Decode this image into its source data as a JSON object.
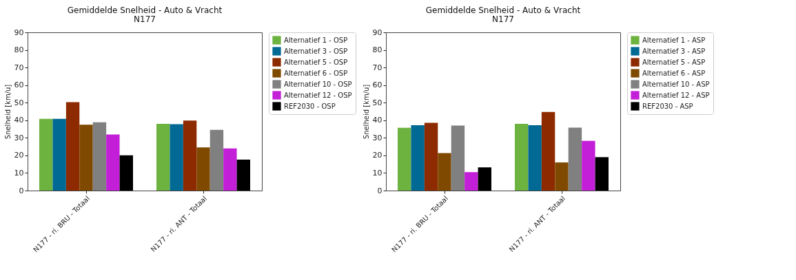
{
  "chart_data": [
    {
      "type": "bar",
      "title": "Gemiddelde Snelheid - Auto & Vracht",
      "subtitle": "N177",
      "ylabel": "Snelheid [km/u]",
      "categories": [
        "N177 - ri. BRU - Totaal",
        "N177 - ri. ANT - Totaal"
      ],
      "ylim": [
        0,
        90
      ],
      "yticks": [
        0,
        10,
        20,
        30,
        40,
        50,
        60,
        70,
        80,
        90
      ],
      "grid": false,
      "legend": "top right",
      "series": [
        {
          "name": "Alternatief 1 - OSP",
          "color": "#6db33f",
          "values": [
            40.8,
            38.0
          ]
        },
        {
          "name": "Alternatief 3 - OSP",
          "color": "#006994",
          "values": [
            40.8,
            37.8
          ]
        },
        {
          "name": "Alternatief 5 - OSP",
          "color": "#8e2a00",
          "values": [
            50.3,
            39.8
          ]
        },
        {
          "name": "Alternatief 6 - OSP",
          "color": "#7f4a00",
          "values": [
            37.5,
            24.6
          ]
        },
        {
          "name": "Alternatief 10 - OSP",
          "color": "#808080",
          "values": [
            38.8,
            34.5
          ]
        },
        {
          "name": "Alternatief 12 - OSP",
          "color": "#c41fd8",
          "values": [
            31.9,
            24.0
          ]
        },
        {
          "name": "REF2030 - OSP",
          "color": "#000000",
          "values": [
            20.1,
            17.6
          ]
        }
      ]
    },
    {
      "type": "bar",
      "title": "Gemiddelde Snelheid - Auto & Vracht",
      "subtitle": "N177",
      "ylabel": "Snelheid [km/u]",
      "categories": [
        "N177 - ri. BRU - Totaal",
        "N177 - ri. ANT - Totaal"
      ],
      "ylim": [
        0,
        90
      ],
      "yticks": [
        0,
        10,
        20,
        30,
        40,
        50,
        60,
        70,
        80,
        90
      ],
      "grid": false,
      "legend": "top right",
      "series": [
        {
          "name": "Alternatief 1 - ASP",
          "color": "#6db33f",
          "values": [
            35.7,
            38.0
          ]
        },
        {
          "name": "Alternatief 3 - ASP",
          "color": "#006994",
          "values": [
            37.2,
            37.2
          ]
        },
        {
          "name": "Alternatief 5 - ASP",
          "color": "#8e2a00",
          "values": [
            38.5,
            44.7
          ]
        },
        {
          "name": "Alternatief 6 - ASP",
          "color": "#7f4a00",
          "values": [
            21.3,
            16.0
          ]
        },
        {
          "name": "Alternatief 10 - ASP",
          "color": "#808080",
          "values": [
            37.0,
            35.8
          ]
        },
        {
          "name": "Alternatief 12 - ASP",
          "color": "#c41fd8",
          "values": [
            10.5,
            28.3
          ]
        },
        {
          "name": "REF2030 - ASP",
          "color": "#000000",
          "values": [
            13.2,
            19.0
          ]
        }
      ]
    }
  ]
}
